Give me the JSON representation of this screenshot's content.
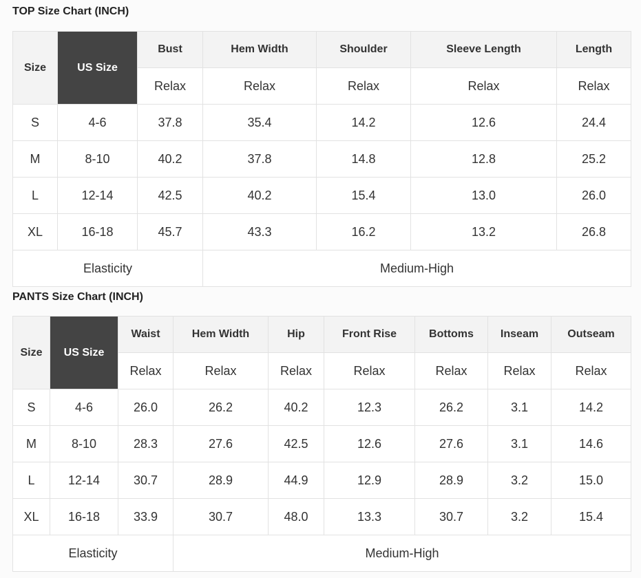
{
  "top": {
    "title": "TOP Size Chart (INCH)",
    "size_header": "Size",
    "us_size_header": "US Size",
    "columns": [
      "Bust",
      "Hem Width",
      "Shoulder",
      "Sleeve Length",
      "Length"
    ],
    "sub_label": "Relax",
    "rows": [
      [
        "S",
        "4-6",
        "37.8",
        "35.4",
        "14.2",
        "12.6",
        "24.4"
      ],
      [
        "M",
        "8-10",
        "40.2",
        "37.8",
        "14.8",
        "12.8",
        "25.2"
      ],
      [
        "L",
        "12-14",
        "42.5",
        "40.2",
        "15.4",
        "13.0",
        "26.0"
      ],
      [
        "XL",
        "16-18",
        "45.7",
        "43.3",
        "16.2",
        "13.2",
        "26.8"
      ]
    ],
    "elasticity_label": "Elasticity",
    "elasticity_value": "Medium-High"
  },
  "pants": {
    "title": "PANTS Size Chart (INCH)",
    "size_header": "Size",
    "us_size_header": "US Size",
    "columns": [
      "Waist",
      "Hem Width",
      "Hip",
      "Front Rise",
      "Bottoms",
      "Inseam",
      "Outseam"
    ],
    "sub_label": "Relax",
    "rows": [
      [
        "S",
        "4-6",
        "26.0",
        "26.2",
        "40.2",
        "12.3",
        "26.2",
        "3.1",
        "14.2"
      ],
      [
        "M",
        "8-10",
        "28.3",
        "27.6",
        "42.5",
        "12.6",
        "27.6",
        "3.1",
        "14.6"
      ],
      [
        "L",
        "12-14",
        "30.7",
        "28.9",
        "44.9",
        "12.9",
        "28.9",
        "3.2",
        "15.0"
      ],
      [
        "XL",
        "16-18",
        "33.9",
        "30.7",
        "48.0",
        "13.3",
        "30.7",
        "3.2",
        "15.4"
      ]
    ],
    "elasticity_label": "Elasticity",
    "elasticity_value": "Medium-High"
  }
}
